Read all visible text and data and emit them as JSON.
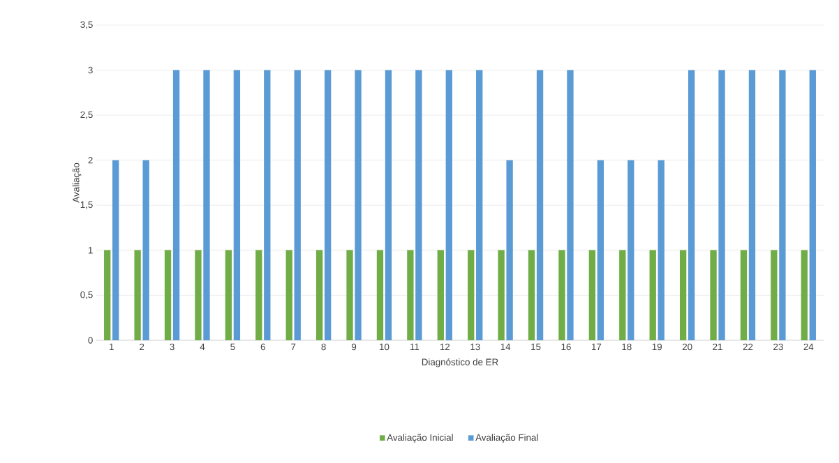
{
  "chart_data": {
    "type": "bar",
    "xlabel": "Diagnóstico de ER",
    "ylabel": "Avaliação",
    "categories": [
      "1",
      "2",
      "3",
      "4",
      "5",
      "6",
      "7",
      "8",
      "9",
      "10",
      "11",
      "12",
      "13",
      "14",
      "15",
      "16",
      "17",
      "18",
      "19",
      "20",
      "21",
      "22",
      "23",
      "24"
    ],
    "series": [
      {
        "name": "Avaliação Inicial",
        "color": "#70ad47",
        "values": [
          1,
          1,
          1,
          1,
          1,
          1,
          1,
          1,
          1,
          1,
          1,
          1,
          1,
          1,
          1,
          1,
          1,
          1,
          1,
          1,
          1,
          1,
          1,
          1
        ]
      },
      {
        "name": "Avaliação Final",
        "color": "#5b9bd5",
        "values": [
          2,
          2,
          3,
          3,
          3,
          3,
          3,
          3,
          3,
          3,
          3,
          3,
          3,
          2,
          3,
          3,
          2,
          2,
          2,
          3,
          3,
          3,
          3,
          3
        ]
      }
    ],
    "ylim": [
      0,
      3.5
    ],
    "yticks": [
      0,
      {
        "value": 0.5,
        "label": "0,5"
      },
      1,
      {
        "value": 1.5,
        "label": "1,5"
      },
      2,
      {
        "value": 2.5,
        "label": "2,5"
      },
      3,
      {
        "value": 3.5,
        "label": "3,5"
      }
    ],
    "grid": "y",
    "legend": "bottom"
  }
}
